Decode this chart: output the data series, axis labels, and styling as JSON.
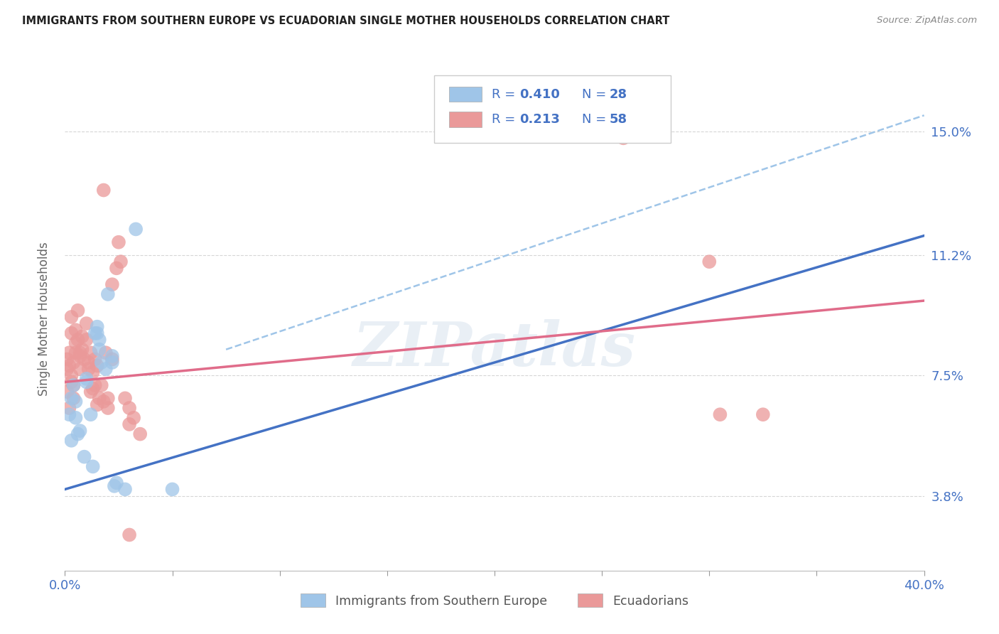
{
  "title": "IMMIGRANTS FROM SOUTHERN EUROPE VS ECUADORIAN SINGLE MOTHER HOUSEHOLDS CORRELATION CHART",
  "source": "Source: ZipAtlas.com",
  "ylabel": "Single Mother Households",
  "yticks": [
    0.038,
    0.075,
    0.112,
    0.15
  ],
  "ytick_labels": [
    "3.8%",
    "7.5%",
    "11.2%",
    "15.0%"
  ],
  "xlim": [
    0.0,
    0.4
  ],
  "ylim": [
    0.015,
    0.17
  ],
  "watermark": "ZIPatlas",
  "blue_dots": [
    [
      0.002,
      0.063
    ],
    [
      0.003,
      0.068
    ],
    [
      0.003,
      0.055
    ],
    [
      0.004,
      0.072
    ],
    [
      0.005,
      0.062
    ],
    [
      0.005,
      0.067
    ],
    [
      0.006,
      0.057
    ],
    [
      0.007,
      0.058
    ],
    [
      0.009,
      0.05
    ],
    [
      0.01,
      0.074
    ],
    [
      0.01,
      0.073
    ],
    [
      0.012,
      0.063
    ],
    [
      0.013,
      0.047
    ],
    [
      0.014,
      0.088
    ],
    [
      0.015,
      0.09
    ],
    [
      0.015,
      0.088
    ],
    [
      0.016,
      0.086
    ],
    [
      0.016,
      0.083
    ],
    [
      0.017,
      0.079
    ],
    [
      0.019,
      0.077
    ],
    [
      0.02,
      0.1
    ],
    [
      0.022,
      0.079
    ],
    [
      0.022,
      0.081
    ],
    [
      0.023,
      0.041
    ],
    [
      0.024,
      0.042
    ],
    [
      0.028,
      0.04
    ],
    [
      0.033,
      0.12
    ],
    [
      0.05,
      0.04
    ]
  ],
  "pink_dots": [
    [
      0.001,
      0.077
    ],
    [
      0.001,
      0.08
    ],
    [
      0.001,
      0.07
    ],
    [
      0.002,
      0.082
    ],
    [
      0.002,
      0.078
    ],
    [
      0.002,
      0.065
    ],
    [
      0.003,
      0.093
    ],
    [
      0.003,
      0.075
    ],
    [
      0.003,
      0.088
    ],
    [
      0.003,
      0.073
    ],
    [
      0.004,
      0.079
    ],
    [
      0.004,
      0.068
    ],
    [
      0.004,
      0.072
    ],
    [
      0.005,
      0.085
    ],
    [
      0.005,
      0.082
    ],
    [
      0.005,
      0.089
    ],
    [
      0.006,
      0.086
    ],
    [
      0.006,
      0.095
    ],
    [
      0.007,
      0.081
    ],
    [
      0.007,
      0.077
    ],
    [
      0.007,
      0.082
    ],
    [
      0.008,
      0.087
    ],
    [
      0.008,
      0.083
    ],
    [
      0.009,
      0.08
    ],
    [
      0.01,
      0.086
    ],
    [
      0.01,
      0.091
    ],
    [
      0.011,
      0.077
    ],
    [
      0.011,
      0.079
    ],
    [
      0.012,
      0.07
    ],
    [
      0.012,
      0.082
    ],
    [
      0.013,
      0.076
    ],
    [
      0.013,
      0.071
    ],
    [
      0.014,
      0.08
    ],
    [
      0.014,
      0.072
    ],
    [
      0.015,
      0.066
    ],
    [
      0.015,
      0.078
    ],
    [
      0.016,
      0.068
    ],
    [
      0.017,
      0.072
    ],
    [
      0.018,
      0.067
    ],
    [
      0.018,
      0.132
    ],
    [
      0.019,
      0.082
    ],
    [
      0.02,
      0.068
    ],
    [
      0.02,
      0.065
    ],
    [
      0.022,
      0.103
    ],
    [
      0.022,
      0.08
    ],
    [
      0.024,
      0.108
    ],
    [
      0.025,
      0.116
    ],
    [
      0.026,
      0.11
    ],
    [
      0.028,
      0.068
    ],
    [
      0.03,
      0.065
    ],
    [
      0.03,
      0.06
    ],
    [
      0.032,
      0.062
    ],
    [
      0.035,
      0.057
    ],
    [
      0.26,
      0.148
    ],
    [
      0.3,
      0.11
    ],
    [
      0.305,
      0.063
    ],
    [
      0.325,
      0.063
    ],
    [
      0.03,
      0.026
    ]
  ],
  "blue_line_x0": 0.0,
  "blue_line_y0": 0.04,
  "blue_line_x1": 0.4,
  "blue_line_y1": 0.118,
  "pink_line_x0": 0.0,
  "pink_line_y0": 0.073,
  "pink_line_x1": 0.4,
  "pink_line_y1": 0.098,
  "dash_line_x0": 0.075,
  "dash_line_y0": 0.083,
  "dash_line_x1": 0.4,
  "dash_line_y1": 0.155,
  "blue_color": "#9fc5e8",
  "pink_color": "#ea9999",
  "blue_line_color": "#4472c4",
  "pink_line_color": "#e06c8a",
  "dashed_color": "#9fc5e8",
  "value_color_blue": "#4472c4",
  "value_color_pink": "#e06c8a",
  "n_color": "#cc4444",
  "axis_label_color": "#4472c4",
  "title_color": "#222222",
  "ylabel_color": "#666666",
  "legend_r1_val": "0.410",
  "legend_n1_val": "28",
  "legend_r2_val": "0.213",
  "legend_n2_val": "58"
}
